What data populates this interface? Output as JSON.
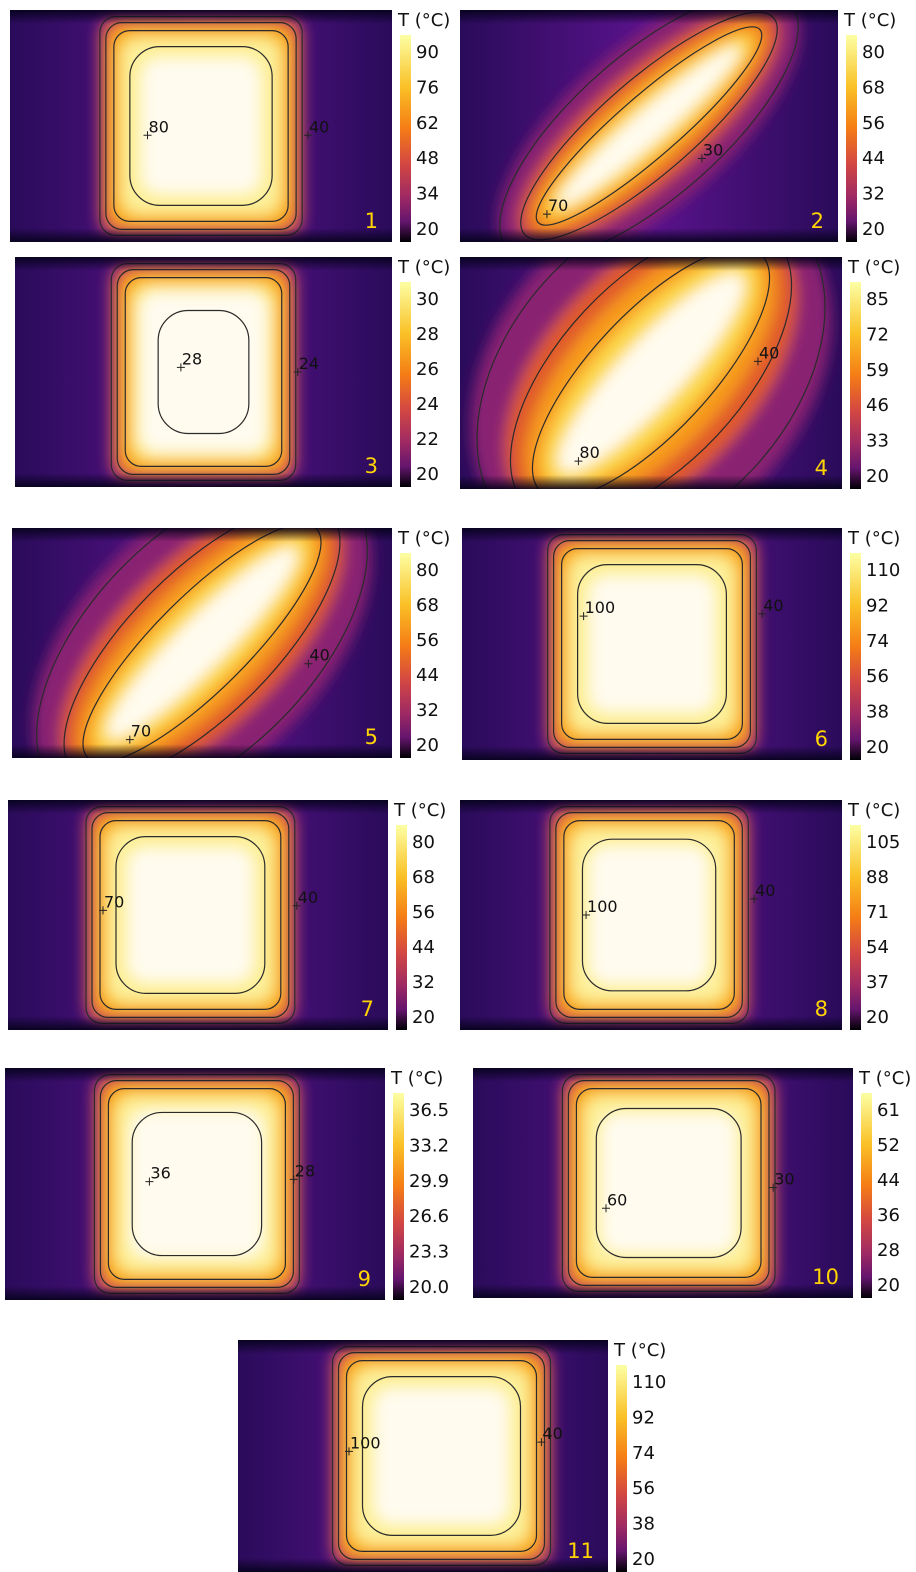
{
  "panels": [
    {
      "number": "1",
      "colorbar": {
        "title": "T (°C)",
        "ticks": [
          "90",
          "76",
          "62",
          "48",
          "34",
          "20"
        ]
      },
      "contour_labels": [
        "80",
        "40"
      ]
    },
    {
      "number": "2",
      "colorbar": {
        "title": "T (°C)",
        "ticks": [
          "80",
          "68",
          "56",
          "44",
          "32",
          "20"
        ]
      },
      "contour_labels": [
        "30",
        "70"
      ]
    },
    {
      "number": "3",
      "colorbar": {
        "title": "T (°C)",
        "ticks": [
          "30",
          "28",
          "26",
          "24",
          "22",
          "20"
        ]
      },
      "contour_labels": [
        "28",
        "24"
      ]
    },
    {
      "number": "4",
      "colorbar": {
        "title": "T (°C)",
        "ticks": [
          "85",
          "72",
          "59",
          "46",
          "33",
          "20"
        ]
      },
      "contour_labels": [
        "40",
        "80"
      ]
    },
    {
      "number": "5",
      "colorbar": {
        "title": "T (°C)",
        "ticks": [
          "80",
          "68",
          "56",
          "44",
          "32",
          "20"
        ]
      },
      "contour_labels": [
        "40",
        "70"
      ]
    },
    {
      "number": "6",
      "colorbar": {
        "title": "T (°C)",
        "ticks": [
          "110",
          "92",
          "74",
          "56",
          "38",
          "20"
        ]
      },
      "contour_labels": [
        "100",
        "40"
      ]
    },
    {
      "number": "7",
      "colorbar": {
        "title": "T (°C)",
        "ticks": [
          "80",
          "68",
          "56",
          "44",
          "32",
          "20"
        ]
      },
      "contour_labels": [
        "70",
        "40"
      ]
    },
    {
      "number": "8",
      "colorbar": {
        "title": "T (°C)",
        "ticks": [
          "105",
          "88",
          "71",
          "54",
          "37",
          "20"
        ]
      },
      "contour_labels": [
        "100",
        "40"
      ]
    },
    {
      "number": "9",
      "colorbar": {
        "title": "T (°C)",
        "ticks": [
          "36.5",
          "33.2",
          "29.9",
          "26.6",
          "23.3",
          "20.0"
        ]
      },
      "contour_labels": [
        "36",
        "28"
      ]
    },
    {
      "number": "10",
      "colorbar": {
        "title": "T (°C)",
        "ticks": [
          "61",
          "52",
          "44",
          "36",
          "28",
          "20"
        ]
      },
      "contour_labels": [
        "60",
        "30"
      ]
    },
    {
      "number": "11",
      "colorbar": {
        "title": "T (°C)",
        "ticks": [
          "110",
          "92",
          "74",
          "56",
          "38",
          "20"
        ]
      },
      "contour_labels": [
        "100",
        "40"
      ]
    }
  ]
}
